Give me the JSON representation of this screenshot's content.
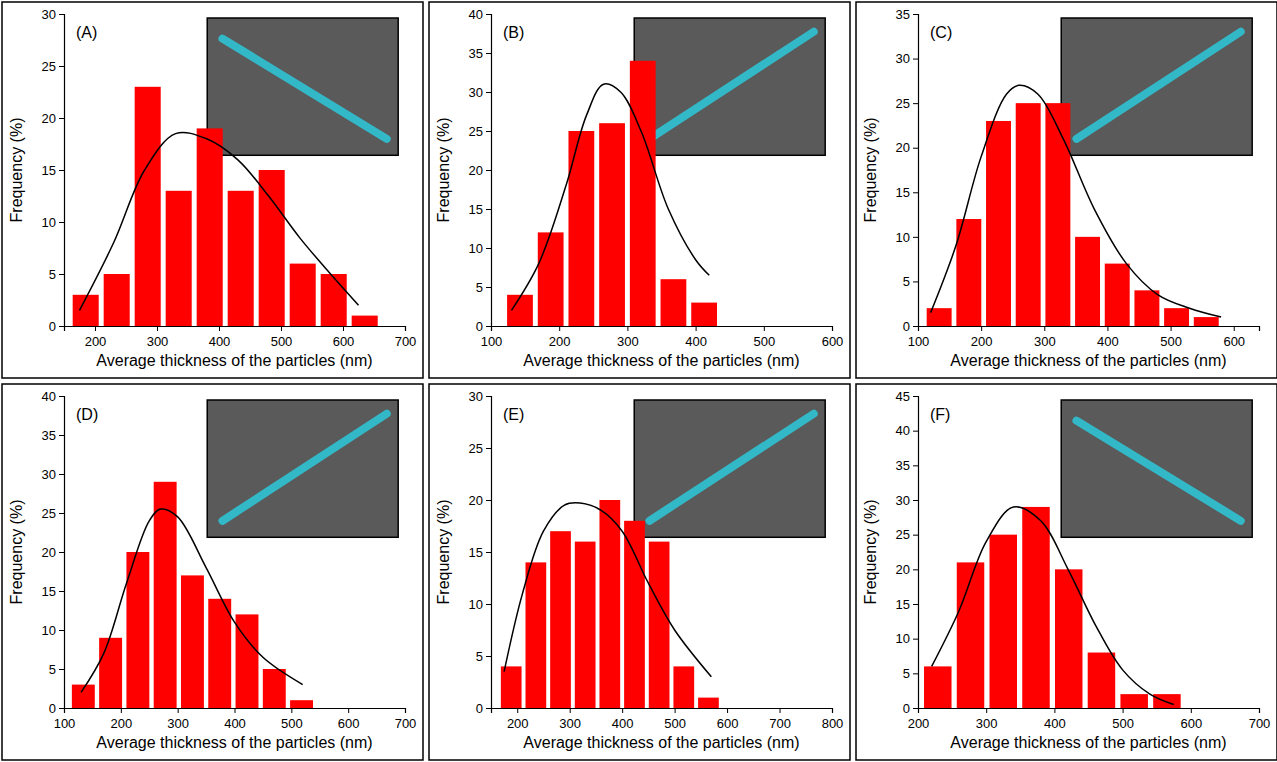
{
  "chart_data": [
    {
      "type": "histogram",
      "title": "(A)",
      "x_label": "Average thickness of the particles (nm)",
      "y_label": "Frequency (%)",
      "color": "#ff0000",
      "bins": [
        160,
        210,
        260,
        310,
        360,
        410,
        460,
        510,
        560,
        610,
        660
      ],
      "values": [
        3,
        5,
        23,
        13,
        19,
        13,
        15,
        6,
        5,
        1
      ],
      "xlim": [
        150,
        700
      ],
      "xticks": [
        200,
        300,
        400,
        500,
        600,
        700
      ],
      "ylim": [
        0,
        30
      ],
      "yticks": [
        0,
        5,
        10,
        15,
        20,
        25,
        30
      ],
      "fit": {
        "color": "#000000",
        "x": [
          175,
          230,
          280,
          330,
          380,
          430,
          480,
          530,
          580,
          625
        ],
        "values": [
          1.5,
          8,
          15,
          18.5,
          18,
          16,
          12.5,
          8.5,
          5,
          2
        ]
      }
    },
    {
      "type": "histogram",
      "title": "(B)",
      "x_label": "Average thickness of the particles (nm)",
      "y_label": "Frequency (%)",
      "color": "#ff0000",
      "bins": [
        120,
        165,
        210,
        255,
        300,
        345,
        390,
        435
      ],
      "values": [
        4,
        12,
        25,
        26,
        34,
        6,
        3
      ],
      "xlim": [
        100,
        600
      ],
      "xticks": [
        100,
        200,
        300,
        400,
        500,
        600
      ],
      "ylim": [
        0,
        40
      ],
      "yticks": [
        0,
        5,
        10,
        15,
        20,
        25,
        30,
        35,
        40
      ],
      "fit": {
        "color": "#000000",
        "x": [
          130,
          170,
          210,
          240,
          265,
          290,
          320,
          360,
          400,
          420
        ],
        "values": [
          2,
          8,
          18,
          27,
          31,
          30,
          25,
          15,
          8.5,
          6.5
        ]
      }
    },
    {
      "type": "histogram",
      "title": "(C)",
      "x_label": "Average thickness of the particles (nm)",
      "y_label": "Frequency (%)",
      "color": "#ff0000",
      "bins": [
        110,
        157,
        204,
        251,
        298,
        345,
        392,
        439,
        486,
        533,
        580
      ],
      "values": [
        2,
        12,
        23,
        25,
        25,
        10,
        7,
        4,
        2,
        1
      ],
      "xlim": [
        100,
        640
      ],
      "xticks": [
        100,
        200,
        300,
        400,
        500,
        600
      ],
      "ylim": [
        0,
        35
      ],
      "yticks": [
        0,
        5,
        10,
        15,
        20,
        25,
        30,
        35
      ],
      "fit": {
        "color": "#000000",
        "x": [
          120,
          160,
          200,
          240,
          260,
          290,
          330,
          380,
          430,
          480,
          530,
          580
        ],
        "values": [
          1.5,
          9,
          19,
          26,
          27,
          26,
          21,
          13,
          7,
          3.5,
          2,
          1
        ]
      }
    },
    {
      "type": "histogram",
      "title": "(D)",
      "x_label": "Average thickness of the particles (nm)",
      "y_label": "Frequency (%)",
      "color": "#ff0000",
      "bins": [
        110,
        158,
        206,
        254,
        302,
        350,
        398,
        446,
        494,
        542
      ],
      "values": [
        3,
        9,
        20,
        29,
        17,
        14,
        12,
        5,
        1
      ],
      "xlim": [
        100,
        700
      ],
      "xticks": [
        100,
        200,
        300,
        400,
        500,
        600,
        700
      ],
      "ylim": [
        0,
        40
      ],
      "yticks": [
        0,
        5,
        10,
        15,
        20,
        25,
        30,
        35,
        40
      ],
      "fit": {
        "color": "#000000",
        "x": [
          130,
          170,
          210,
          250,
          270,
          300,
          350,
          400,
          450,
          520
        ],
        "values": [
          2,
          7,
          16,
          24,
          25.5,
          24.5,
          18,
          11,
          6.5,
          3
        ]
      }
    },
    {
      "type": "histogram",
      "title": "(E)",
      "x_label": "Average thickness of the particles (nm)",
      "y_label": "Frequency (%)",
      "color": "#ff0000",
      "bins": [
        165,
        212,
        259,
        306,
        353,
        400,
        447,
        494,
        541,
        588
      ],
      "values": [
        4,
        14,
        17,
        16,
        20,
        18,
        16,
        4,
        1
      ],
      "xlim": [
        150,
        800
      ],
      "xticks": [
        200,
        300,
        400,
        500,
        600,
        700,
        800
      ],
      "ylim": [
        0,
        30
      ],
      "yticks": [
        0,
        5,
        10,
        15,
        20,
        25,
        30
      ],
      "fit": {
        "color": "#000000",
        "x": [
          175,
          210,
          250,
          290,
          320,
          360,
          400,
          450,
          500,
          570
        ],
        "values": [
          3.5,
          11,
          17,
          19.5,
          19.7,
          19,
          17,
          12,
          7.5,
          3
        ]
      }
    },
    {
      "type": "histogram",
      "title": "(F)",
      "x_label": "Average thickness of the particles (nm)",
      "y_label": "Frequency (%)",
      "color": "#ff0000",
      "bins": [
        205,
        253,
        301,
        349,
        397,
        445,
        493,
        541,
        589
      ],
      "values": [
        6,
        21,
        25,
        29,
        20,
        8,
        2,
        2
      ],
      "xlim": [
        200,
        700
      ],
      "xticks": [
        200,
        300,
        400,
        500,
        600,
        700
      ],
      "ylim": [
        0,
        45
      ],
      "yticks": [
        0,
        5,
        10,
        15,
        20,
        25,
        30,
        35,
        40,
        45
      ],
      "fit": {
        "color": "#000000",
        "x": [
          220,
          260,
          300,
          340,
          380,
          420,
          460,
          500,
          540,
          575
        ],
        "values": [
          6,
          14,
          24,
          29,
          27,
          20,
          12,
          5.5,
          2,
          0.5
        ]
      }
    }
  ]
}
